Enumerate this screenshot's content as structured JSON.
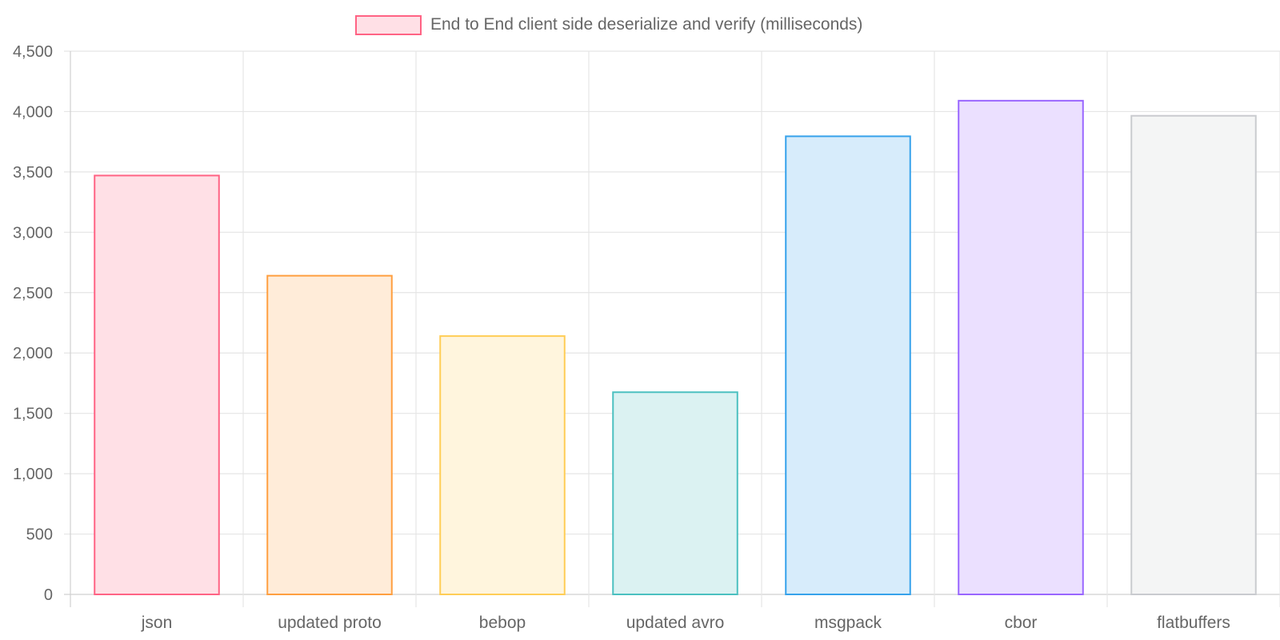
{
  "chart_data": {
    "type": "bar",
    "categories": [
      "json",
      "updated proto",
      "bebop",
      "updated avro",
      "msgpack",
      "cbor",
      "flatbuffers"
    ],
    "series": [
      {
        "name": "End to End client side deserialize and verify (milliseconds)",
        "values": [
          3470,
          2640,
          2140,
          1675,
          3795,
          4090,
          3965
        ]
      }
    ],
    "ylim": [
      0,
      4500
    ],
    "yticks": [
      "0",
      "500",
      "1,000",
      "1,500",
      "2,000",
      "2,500",
      "3,000",
      "3,500",
      "4,000",
      "4,500"
    ],
    "ytick_values": [
      0,
      500,
      1000,
      1500,
      2000,
      2500,
      3000,
      3500,
      4000,
      4500
    ],
    "grid": true,
    "legend_position": "top",
    "bar_colors": [
      {
        "border": "#ff6384",
        "fill": "#ffe0e6"
      },
      {
        "border": "#ff9f40",
        "fill": "#ffecd9"
      },
      {
        "border": "#ffcd56",
        "fill": "#fff5dd"
      },
      {
        "border": "#4bc0c0",
        "fill": "#dbf2f2"
      },
      {
        "border": "#36a2eb",
        "fill": "#d7ecfb"
      },
      {
        "border": "#9966ff",
        "fill": "#ebe0ff"
      },
      {
        "border": "#c9cbcf",
        "fill": "#f4f5f5"
      }
    ],
    "grid_color": "#e5e5e5",
    "axis_color": "#d0d0d0"
  }
}
